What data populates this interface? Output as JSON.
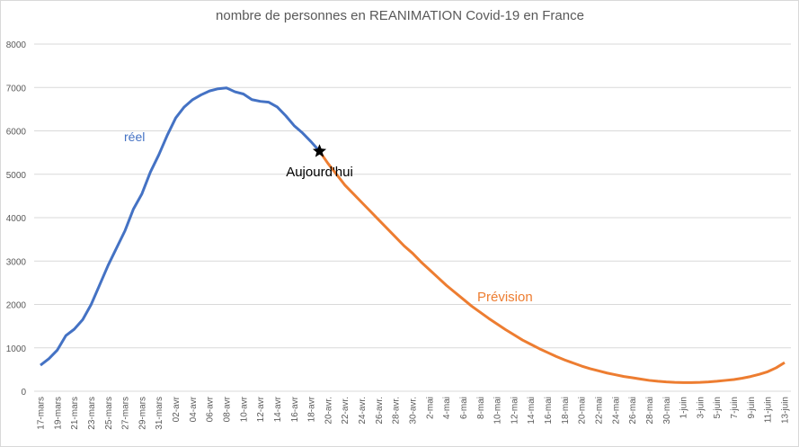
{
  "chart_data": {
    "type": "line",
    "title": "nombre de personnes en REANIMATION Covid-19 en France",
    "categories": [
      "17-mars",
      null,
      "19-mars",
      null,
      "21-mars",
      null,
      "23-mars",
      null,
      "25-mars",
      null,
      "27-mars",
      null,
      "29-mars",
      null,
      "31-mars",
      null,
      "02-avr",
      null,
      "04-avr",
      null,
      "06-avr",
      null,
      "08-avr",
      null,
      "10-avr",
      null,
      "12-avr",
      null,
      "14-avr",
      null,
      "16-avr",
      null,
      "18-avr",
      null,
      "20-avr.",
      null,
      "22-avr.",
      null,
      "24-avr.",
      null,
      "26-avr.",
      null,
      "28-avr.",
      null,
      "30-avr.",
      null,
      "2-mai",
      null,
      "4-mai",
      null,
      "6-mai",
      null,
      "8-mai",
      null,
      "10-mai",
      null,
      "12-mai",
      null,
      "14-mai",
      null,
      "16-mai",
      null,
      "18-mai",
      null,
      "20-mai",
      null,
      "22-mai",
      null,
      "24-mai",
      null,
      "26-mai",
      null,
      "28-mai",
      null,
      "30-mai",
      null,
      "1-juin",
      null,
      "3-juin",
      null,
      "5-juin",
      null,
      "7-juin",
      null,
      "9-juin",
      null,
      "11-juin",
      null,
      "13-juin"
    ],
    "series": [
      {
        "name": "réel",
        "color": "#4472c4",
        "values": [
          600,
          750,
          950,
          1280,
          1430,
          1650,
          2000,
          2450,
          2900,
          3300,
          3700,
          4200,
          4550,
          5050,
          5450,
          5900,
          6300,
          6550,
          6720,
          6830,
          6920,
          6970,
          6990,
          6900,
          6850,
          6720,
          6680,
          6660,
          6550,
          6350,
          6120,
          5950,
          5750,
          5530,
          null,
          null,
          null,
          null,
          null,
          null,
          null,
          null,
          null,
          null,
          null,
          null,
          null,
          null,
          null,
          null,
          null,
          null,
          null,
          null,
          null,
          null,
          null,
          null,
          null,
          null,
          null,
          null,
          null,
          null,
          null,
          null,
          null,
          null,
          null,
          null,
          null,
          null,
          null,
          null,
          null,
          null,
          null,
          null,
          null,
          null,
          null,
          null,
          null,
          null,
          null,
          null,
          null,
          null,
          null
        ]
      },
      {
        "name": "Prévision",
        "color": "#ed7d31",
        "values": [
          null,
          null,
          null,
          null,
          null,
          null,
          null,
          null,
          null,
          null,
          null,
          null,
          null,
          null,
          null,
          null,
          null,
          null,
          null,
          null,
          null,
          null,
          null,
          null,
          null,
          null,
          null,
          null,
          null,
          null,
          null,
          null,
          null,
          5530,
          5250,
          5000,
          4750,
          4550,
          4350,
          4150,
          3950,
          3750,
          3550,
          3350,
          3180,
          2980,
          2800,
          2620,
          2440,
          2280,
          2120,
          1960,
          1820,
          1680,
          1550,
          1420,
          1300,
          1180,
          1080,
          980,
          890,
          800,
          720,
          650,
          580,
          520,
          470,
          420,
          380,
          340,
          310,
          280,
          250,
          230,
          215,
          205,
          200,
          200,
          205,
          215,
          230,
          250,
          270,
          300,
          340,
          390,
          450,
          540,
          660
        ]
      }
    ],
    "annotation": "Aujourd'hui",
    "ylim": [
      0,
      8000
    ],
    "yticks": [
      0,
      1000,
      2000,
      3000,
      4000,
      5000,
      6000,
      7000,
      8000
    ],
    "grid": true
  }
}
